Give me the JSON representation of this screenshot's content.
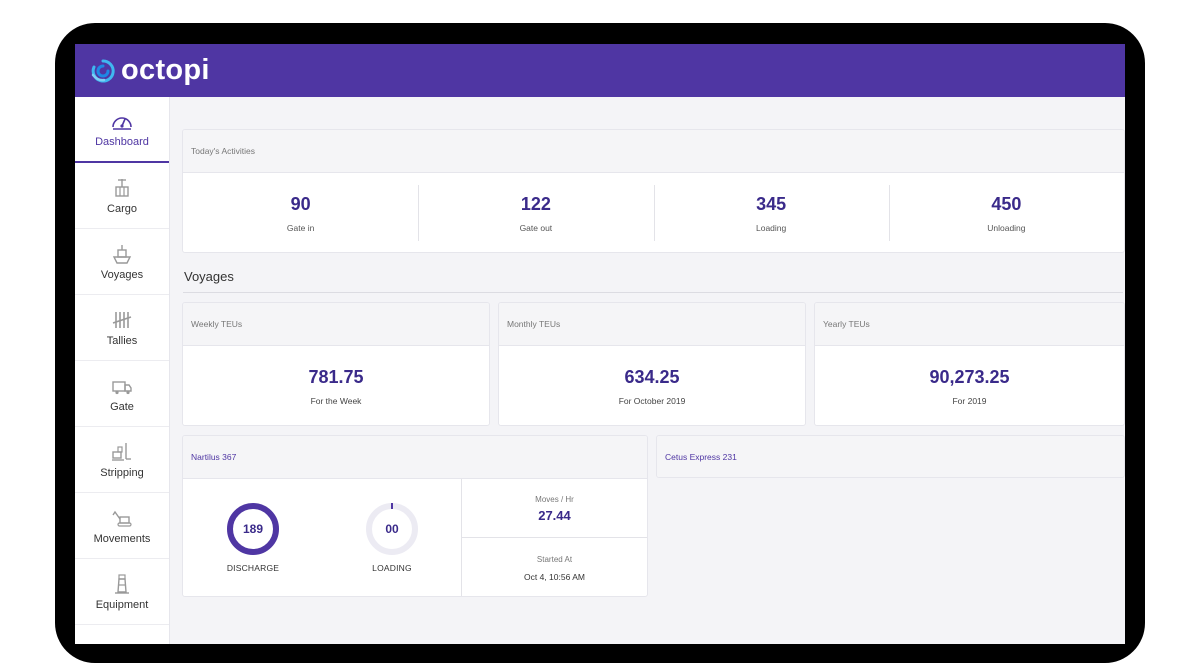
{
  "app": {
    "name": "octopi"
  },
  "colors": {
    "brand": "#4f36a3",
    "accent_text": "#3a2a8a"
  },
  "sidebar": {
    "items": [
      {
        "label": "Dashboard",
        "icon": "gauge-icon",
        "active": true
      },
      {
        "label": "Cargo",
        "icon": "crane-icon"
      },
      {
        "label": "Voyages",
        "icon": "ship-icon"
      },
      {
        "label": "Tallies",
        "icon": "tally-icon"
      },
      {
        "label": "Gate",
        "icon": "truck-icon"
      },
      {
        "label": "Stripping",
        "icon": "forklift-icon"
      },
      {
        "label": "Movements",
        "icon": "excavator-icon"
      },
      {
        "label": "Equipment",
        "icon": "lighthouse-icon"
      }
    ]
  },
  "activities": {
    "title": "Today's Activities",
    "stats": [
      {
        "value": "90",
        "label": "Gate in"
      },
      {
        "value": "122",
        "label": "Gate out"
      },
      {
        "value": "345",
        "label": "Loading"
      },
      {
        "value": "450",
        "label": "Unloading"
      }
    ]
  },
  "voyages": {
    "title": "Voyages",
    "teus": [
      {
        "title": "Weekly TEUs",
        "value": "781.75",
        "sub": "For the Week"
      },
      {
        "title": "Monthly TEUs",
        "value": "634.25",
        "sub": "For October 2019"
      },
      {
        "title": "Yearly TEUs",
        "value": "90,273.25",
        "sub": "For 2019"
      }
    ],
    "vessels": [
      {
        "name": "Nartilus 367",
        "discharge": {
          "value": "189",
          "label": "DISCHARGE",
          "progress": 1.0
        },
        "loading": {
          "value": "00",
          "label": "LOADING",
          "progress": 0.0
        },
        "moves": {
          "label": "Moves / Hr",
          "value": "27.44"
        },
        "started": {
          "label": "Started At",
          "value": "Oct 4, 10:56 AM"
        }
      },
      {
        "name": "Cetus Express 231"
      }
    ]
  }
}
